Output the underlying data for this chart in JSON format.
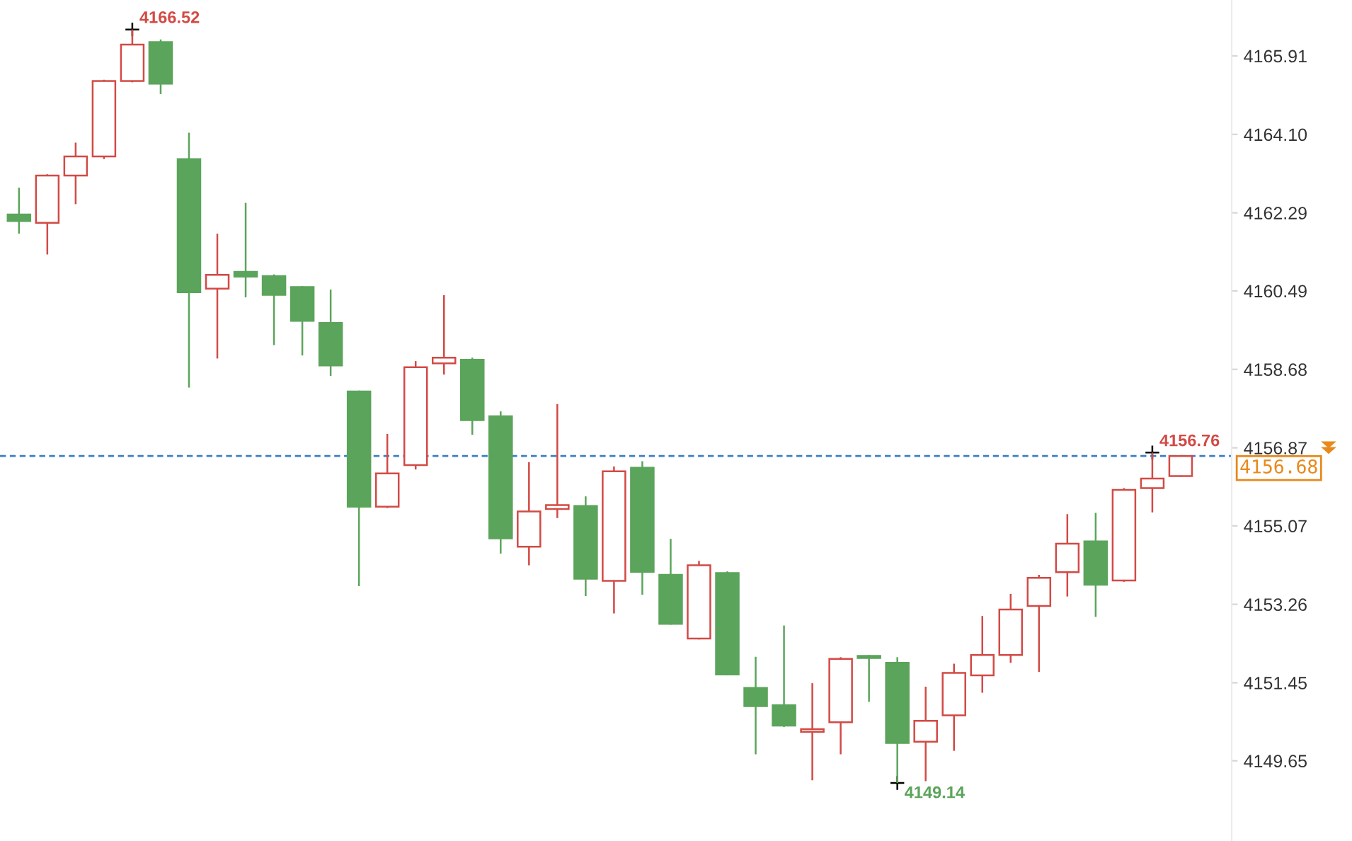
{
  "chart_data": {
    "type": "candlestick",
    "categories": [
      null,
      null,
      null,
      null,
      null,
      null,
      null,
      null,
      null,
      null,
      null,
      null,
      null,
      null,
      null,
      null,
      null,
      null,
      null,
      null,
      null,
      null,
      null,
      null,
      null,
      null,
      null,
      null,
      null,
      null,
      null,
      null,
      null,
      null,
      null,
      null,
      null,
      null,
      null,
      null,
      null,
      null
    ],
    "ohlc": [
      [
        4162.25,
        4162.87,
        4161.81,
        4162.1
      ],
      [
        4162.06,
        4163.18,
        4161.33,
        4163.15
      ],
      [
        4163.15,
        4163.91,
        4162.49,
        4163.59
      ],
      [
        4163.59,
        4165.36,
        4163.53,
        4165.33
      ],
      [
        4165.33,
        4166.52,
        4165.3,
        4166.17
      ],
      [
        4166.23,
        4166.29,
        4165.03,
        4165.27
      ],
      [
        4163.53,
        4164.14,
        4158.26,
        4160.46
      ],
      [
        4160.54,
        4161.81,
        4158.93,
        4160.86
      ],
      [
        4160.93,
        4162.52,
        4160.34,
        4160.82
      ],
      [
        4160.83,
        4160.87,
        4159.24,
        4160.4
      ],
      [
        4160.58,
        4160.6,
        4159.0,
        4159.8
      ],
      [
        4159.75,
        4160.52,
        4158.53,
        4158.77
      ],
      [
        4158.17,
        4158.19,
        4153.68,
        4155.51
      ],
      [
        4155.51,
        4157.19,
        4155.48,
        4156.28
      ],
      [
        4156.47,
        4158.87,
        4156.37,
        4158.73
      ],
      [
        4158.82,
        4160.39,
        4158.56,
        4158.95
      ],
      [
        4158.9,
        4158.95,
        4157.17,
        4157.51
      ],
      [
        4157.6,
        4157.71,
        4154.43,
        4154.78
      ],
      [
        4154.59,
        4156.54,
        4154.16,
        4155.4
      ],
      [
        4155.46,
        4157.88,
        4155.25,
        4155.55
      ],
      [
        4155.53,
        4155.75,
        4153.45,
        4153.85
      ],
      [
        4153.8,
        4156.44,
        4153.05,
        4156.33
      ],
      [
        4156.41,
        4156.56,
        4153.48,
        4154.01
      ],
      [
        4153.94,
        4154.77,
        4152.79,
        4152.81
      ],
      [
        4152.47,
        4154.26,
        4152.45,
        4154.16
      ],
      [
        4153.98,
        4154.02,
        4151.62,
        4151.64
      ],
      [
        4151.33,
        4152.05,
        4149.8,
        4150.91
      ],
      [
        4150.93,
        4152.77,
        4150.43,
        4150.46
      ],
      [
        4150.32,
        4151.44,
        4149.2,
        4150.38
      ],
      [
        4150.54,
        4152.04,
        4149.8,
        4152.0
      ],
      [
        4152.07,
        4152.09,
        4151.01,
        4152.02
      ],
      [
        4151.91,
        4152.04,
        4149.14,
        4150.06
      ],
      [
        4150.09,
        4151.36,
        4149.18,
        4150.57
      ],
      [
        4150.7,
        4151.89,
        4149.88,
        4151.68
      ],
      [
        4151.62,
        4152.99,
        4151.22,
        4152.09
      ],
      [
        4152.09,
        4153.5,
        4151.91,
        4153.14
      ],
      [
        4153.22,
        4153.94,
        4151.7,
        4153.87
      ],
      [
        4154.0,
        4155.34,
        4153.44,
        4154.66
      ],
      [
        4154.71,
        4155.37,
        4152.97,
        4153.71
      ],
      [
        4153.81,
        4155.94,
        4153.78,
        4155.9
      ],
      [
        4155.94,
        4156.76,
        4155.38,
        4156.16
      ],
      [
        4156.22,
        4156.7,
        4156.2,
        4156.68
      ]
    ],
    "value_labels": [
      null,
      null,
      null,
      null,
      "4166.52",
      null,
      null,
      null,
      null,
      null,
      null,
      null,
      null,
      null,
      null,
      null,
      null,
      null,
      null,
      null,
      null,
      null,
      null,
      null,
      null,
      null,
      null,
      null,
      null,
      null,
      null,
      "4149.14",
      null,
      null,
      null,
      null,
      null,
      null,
      null,
      null,
      "4156.76",
      null
    ],
    "colors": [
      "#5ba45b",
      "#d24a45",
      "#d24a45",
      "#d24a45",
      "#d24a45",
      "#5ba45b",
      "#5ba45b",
      "#d24a45",
      "#5ba45b",
      "#5ba45b",
      "#5ba45b",
      "#5ba45b",
      "#5ba45b",
      "#d24a45",
      "#d24a45",
      "#d24a45",
      "#5ba45b",
      "#5ba45b",
      "#d24a45",
      "#d24a45",
      "#5ba45b",
      "#d24a45",
      "#5ba45b",
      "#5ba45b",
      "#d24a45",
      "#5ba45b",
      "#5ba45b",
      "#5ba45b",
      "#d24a45",
      "#d24a45",
      "#5ba45b",
      "#5ba45b",
      "#d24a45",
      "#d24a45",
      "#d24a45",
      "#d24a45",
      "#d24a45",
      "#d24a45",
      "#5ba45b",
      "#d24a45",
      "#d24a45",
      "#d24a45"
    ],
    "ylim": [
      4147.8,
      4167.2
    ],
    "yticks": [
      4165.91,
      {
        "value": 4164.1,
        "label": "4164.10"
      },
      4162.29,
      4160.49,
      4158.68,
      4156.87,
      4155.07,
      4153.26,
      4151.45,
      4149.65
    ],
    "tick_labels": "y",
    "ref_lines": [
      {
        "axis": "y",
        "value": 4156.68,
        "label": "4156.68",
        "color": "#3a7fc4",
        "line_style": "dashed"
      }
    ]
  }
}
